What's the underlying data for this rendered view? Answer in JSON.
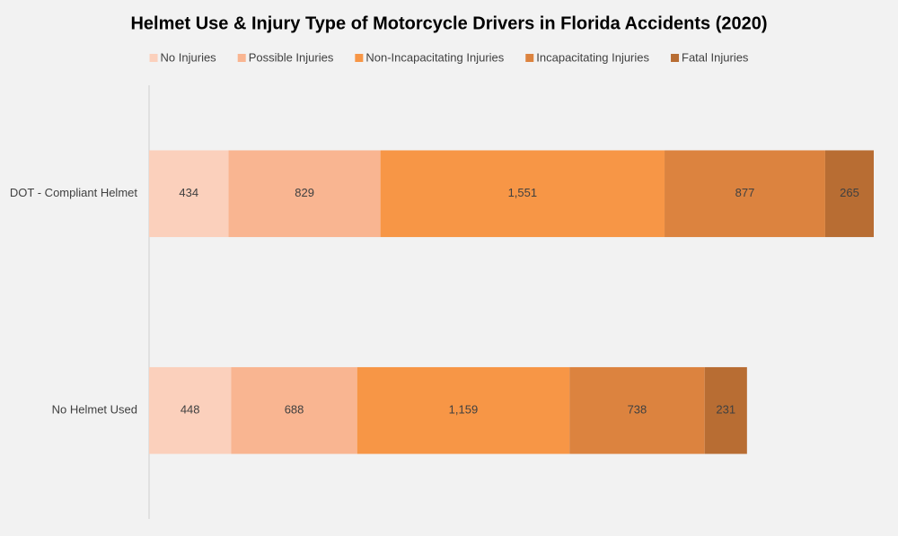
{
  "chart_data": {
    "type": "stacked-bar-horizontal",
    "title": "Helmet Use & Injury Type of Motorcycle Drivers in Florida Accidents (2020)",
    "categories": [
      "DOT - Compliant Helmet",
      "No Helmet Used"
    ],
    "series": [
      {
        "name": "No Injuries",
        "color": "#fbd0bc",
        "values": [
          434,
          448
        ],
        "value_labels": [
          "434",
          "448"
        ]
      },
      {
        "name": "Possible Injuries",
        "color": "#f9b591",
        "values": [
          829,
          688
        ],
        "value_labels": [
          "829",
          "688"
        ]
      },
      {
        "name": "Non-Incapacitating Injuries",
        "color": "#f79646",
        "values": [
          1551,
          1159
        ],
        "value_labels": [
          "1,551",
          "1,159"
        ]
      },
      {
        "name": "Incapacitating Injuries",
        "color": "#dc833f",
        "values": [
          877,
          738
        ],
        "value_labels": [
          "877",
          "738"
        ]
      },
      {
        "name": "Fatal Injuries",
        "color": "#b86d33",
        "values": [
          265,
          231
        ],
        "value_labels": [
          "265",
          "231"
        ]
      }
    ],
    "legend": "top"
  }
}
